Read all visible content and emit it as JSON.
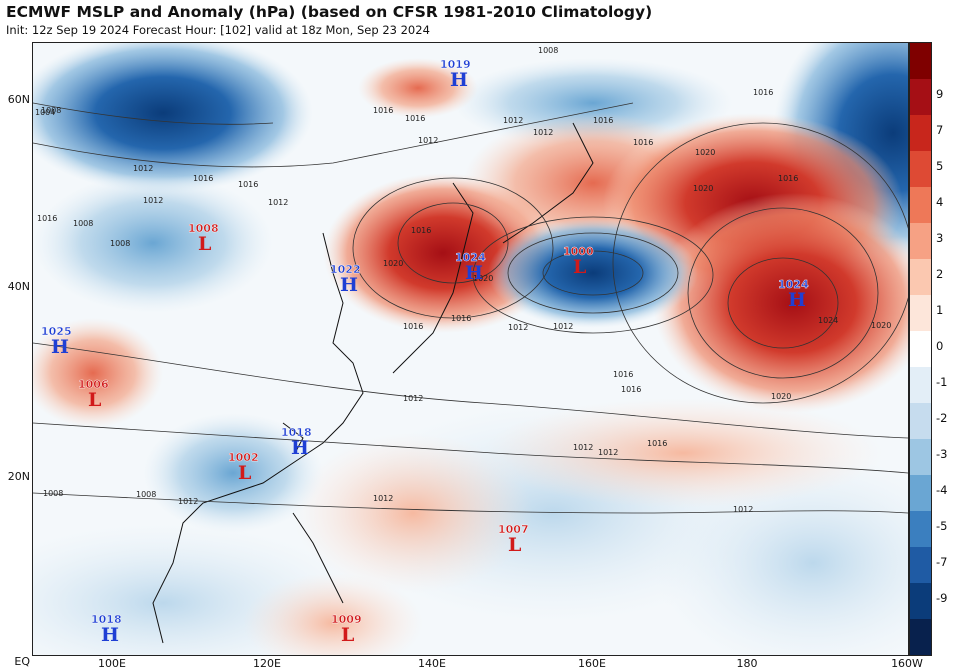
{
  "title": "ECMWF MSLP and Anomaly (hPa) (based on CFSR 1981-2010 Climatology)",
  "subtitle": "Init: 12z Sep 19 2024   Forecast Hour: [102]   valid at 18z Mon, Sep 23 2024",
  "colors": {
    "positive_strong": "#a50f15",
    "positive_mid": "#e0604a",
    "positive_light": "#fbd5c2",
    "neutral": "#ffffff",
    "negative_light": "#cfe3f0",
    "negative_mid": "#5c9ccc",
    "negative_strong": "#0b3c7a",
    "high_marker": "#1f3fd4",
    "low_marker": "#d11a1a"
  },
  "lat_labels": [
    "60N",
    "40N",
    "20N",
    "EQ"
  ],
  "lon_labels": [
    "100E",
    "120E",
    "140E",
    "160E",
    "180",
    "160W"
  ],
  "colorbar": {
    "labels": [
      "9",
      "7",
      "5",
      "4",
      "3",
      "2",
      "1",
      "0",
      "-1",
      "-2",
      "-3",
      "-4",
      "-5",
      "-7",
      "-9"
    ]
  },
  "isobar_labels": [
    "1008",
    "1016",
    "1012",
    "1016",
    "1016",
    "1012",
    "1016",
    "1020",
    "1016",
    "1016",
    "1012",
    "1008",
    "1004",
    "1012",
    "1016",
    "1016",
    "1012",
    "1012",
    "1016",
    "1008",
    "1008",
    "1016",
    "1020",
    "1020",
    "1016",
    "1016",
    "1012",
    "1012",
    "1016",
    "1020",
    "1024",
    "1020",
    "1020",
    "1016",
    "1016",
    "1012",
    "1012",
    "1012",
    "1012",
    "1008",
    "1012",
    "1008",
    "1012"
  ],
  "pressure_centers": [
    {
      "type": "H",
      "value": "1019"
    },
    {
      "type": "L",
      "value": "1008"
    },
    {
      "type": "H",
      "value": "1022"
    },
    {
      "type": "H",
      "value": "1024"
    },
    {
      "type": "L",
      "value": "1000"
    },
    {
      "type": "H",
      "value": "1024"
    },
    {
      "type": "H",
      "value": "1025"
    },
    {
      "type": "L",
      "value": "1006"
    },
    {
      "type": "L",
      "value": "1002"
    },
    {
      "type": "H",
      "value": "1018"
    },
    {
      "type": "L",
      "value": "1007"
    },
    {
      "type": "H",
      "value": "1018"
    },
    {
      "type": "L",
      "value": "1009"
    }
  ]
}
